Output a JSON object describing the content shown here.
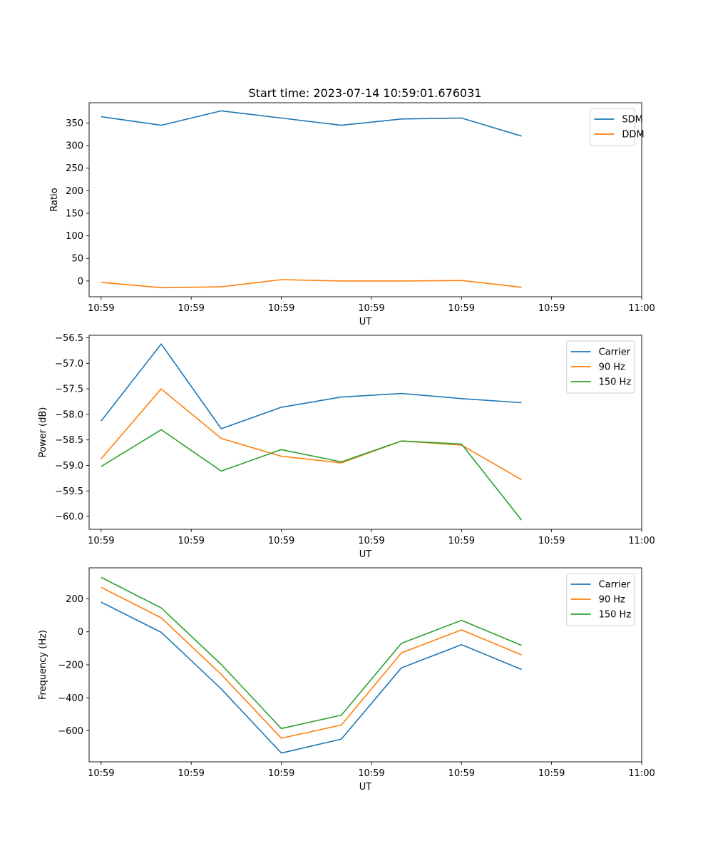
{
  "figure": {
    "title": "Start time: 2023-07-14 10:59:01.676031"
  },
  "colors": {
    "blue": "#1f77b4",
    "orange": "#ff7f0e",
    "green": "#2ca02c"
  },
  "chart_data": [
    {
      "type": "line",
      "title": "Start time: 2023-07-14 10:59:01.676031",
      "xlabel": "UT",
      "ylabel": "Ratio",
      "x": [
        1,
        2,
        3,
        4,
        5,
        6,
        7,
        8
      ],
      "xlim": [
        0.8,
        10
      ],
      "xticks": [
        1,
        2.5,
        4,
        5.5,
        7,
        8.5,
        10
      ],
      "xtick_labels": [
        "10:59",
        "10:59",
        "10:59",
        "10:59",
        "10:59",
        "10:59",
        "11:00"
      ],
      "ylim": [
        -35,
        395
      ],
      "yticks": [
        0,
        50,
        100,
        150,
        200,
        250,
        300,
        350
      ],
      "ytick_labels": [
        "0",
        "50",
        "100",
        "150",
        "200",
        "250",
        "300",
        "350"
      ],
      "legend_position": "top-right",
      "series": [
        {
          "name": "SDM",
          "color": "#1f77b4",
          "values": [
            364,
            345,
            377,
            361,
            345,
            359,
            361,
            321
          ]
        },
        {
          "name": "DDM",
          "color": "#ff7f0e",
          "values": [
            -3,
            -15,
            -13,
            3,
            0,
            0,
            1,
            -14
          ]
        }
      ]
    },
    {
      "type": "line",
      "title": "",
      "xlabel": "UT",
      "ylabel": "Power (dB)",
      "x": [
        1,
        2,
        3,
        4,
        5,
        6,
        7,
        8
      ],
      "xlim": [
        0.8,
        10
      ],
      "xticks": [
        1,
        2.5,
        4,
        5.5,
        7,
        8.5,
        10
      ],
      "xtick_labels": [
        "10:59",
        "10:59",
        "10:59",
        "10:59",
        "10:59",
        "10:59",
        "11:00"
      ],
      "ylim": [
        -60.25,
        -56.45
      ],
      "yticks": [
        -60.0,
        -59.5,
        -59.0,
        -58.5,
        -58.0,
        -57.5,
        -57.0,
        -56.5
      ],
      "ytick_labels": [
        "−60.0",
        "−59.5",
        "−59.0",
        "−58.5",
        "−58.0",
        "−57.5",
        "−57.0",
        "−56.5"
      ],
      "legend_position": "top-right",
      "series": [
        {
          "name": "Carrier",
          "color": "#1f77b4",
          "values": [
            -58.13,
            -56.62,
            -58.28,
            -57.86,
            -57.66,
            -57.59,
            -57.69,
            -57.77
          ]
        },
        {
          "name": "90 Hz",
          "color": "#ff7f0e",
          "values": [
            -58.87,
            -57.5,
            -58.47,
            -58.82,
            -58.95,
            -58.52,
            -58.6,
            -59.28
          ]
        },
        {
          "name": "150 Hz",
          "color": "#2ca02c",
          "values": [
            -59.02,
            -58.3,
            -59.11,
            -58.69,
            -58.93,
            -58.52,
            -58.58,
            -60.07
          ]
        }
      ]
    },
    {
      "type": "line",
      "title": "",
      "xlabel": "UT",
      "ylabel": "Frequency (Hz)",
      "x": [
        1,
        2,
        3,
        4,
        5,
        6,
        7,
        8
      ],
      "xlim": [
        0.8,
        10
      ],
      "xticks": [
        1,
        2.5,
        4,
        5.5,
        7,
        8.5,
        10
      ],
      "xtick_labels": [
        "10:59",
        "10:59",
        "10:59",
        "10:59",
        "10:59",
        "10:59",
        "11:00"
      ],
      "ylim": [
        -788,
        388
      ],
      "yticks": [
        -600,
        -400,
        -200,
        0,
        200
      ],
      "ytick_labels": [
        "−600",
        "−400",
        "−200",
        "0",
        "200"
      ],
      "legend_position": "top-right",
      "series": [
        {
          "name": "Carrier",
          "color": "#1f77b4",
          "values": [
            180,
            -3,
            -346,
            -735,
            -650,
            -218,
            -78,
            -228
          ]
        },
        {
          "name": "90 Hz",
          "color": "#ff7f0e",
          "values": [
            270,
            85,
            -258,
            -645,
            -565,
            -128,
            12,
            -140
          ]
        },
        {
          "name": "150 Hz",
          "color": "#2ca02c",
          "values": [
            330,
            145,
            -198,
            -586,
            -505,
            -70,
            70,
            -82
          ]
        }
      ]
    }
  ]
}
